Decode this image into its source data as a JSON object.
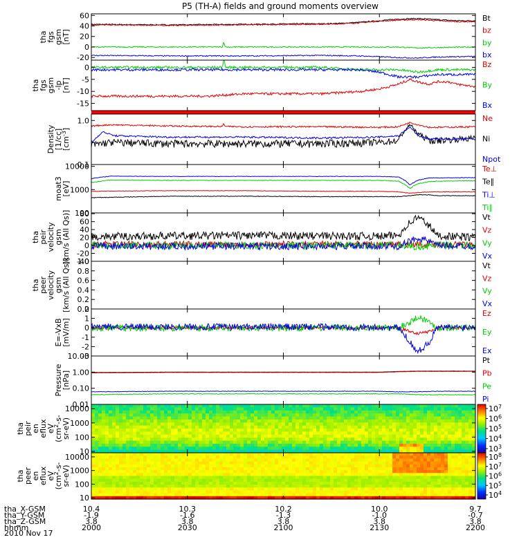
{
  "figure": {
    "title": "P5 (TH-A) fields and ground moments overview",
    "date_label": "2010 Nov 17"
  },
  "colors": {
    "black": "#000000",
    "red": "#dd0000",
    "green": "#00cc00",
    "blue": "#0000dd"
  },
  "chart_data": [
    {
      "type": "line",
      "id": "fgs_gsm",
      "ylabel": [
        "tha",
        "fgs",
        "gsm",
        "[nT]"
      ],
      "ylim": [
        -25,
        63
      ],
      "scale": "linear",
      "yticks": [
        -20,
        0,
        20,
        40,
        60
      ],
      "series": [
        {
          "name": "Bt",
          "color": "black",
          "x": [
            0,
            20,
            40,
            55,
            60,
            65,
            70,
            75,
            80,
            85,
            90,
            95,
            100
          ],
          "y": [
            43,
            42,
            43,
            44,
            44,
            45,
            47,
            50,
            53,
            54,
            52,
            50,
            50
          ],
          "noise": 1.0,
          "spikes": []
        },
        {
          "name": "bz",
          "color": "red",
          "x": [
            0,
            20,
            40,
            55,
            60,
            65,
            70,
            75,
            80,
            85,
            90,
            95,
            100
          ],
          "y": [
            42,
            41,
            42,
            43,
            43,
            44,
            46,
            49,
            51,
            52,
            50,
            48,
            48
          ],
          "noise": 1.0,
          "spikes": []
        },
        {
          "name": "by",
          "color": "green",
          "x": [
            0,
            20,
            40,
            60,
            70,
            80,
            85,
            90,
            100
          ],
          "y": [
            0,
            0,
            0,
            0,
            0,
            0,
            -2,
            -1,
            0
          ],
          "noise": 1.0,
          "spikes": [
            [
              34.5,
              10
            ]
          ]
        },
        {
          "name": "bx",
          "color": "blue",
          "x": [
            0,
            20,
            40,
            60,
            70,
            80,
            85,
            90,
            100
          ],
          "y": [
            -16,
            -17,
            -17,
            -16,
            -17,
            -20,
            -21,
            -19,
            -18
          ],
          "noise": 1.0,
          "spikes": []
        }
      ]
    },
    {
      "type": "line",
      "id": "fgs_gse_lp",
      "ylabel": [
        "tha",
        "fgs",
        "gsm",
        "-lp",
        "[nT]"
      ],
      "ylim": [
        -18,
        3
      ],
      "scale": "linear",
      "yticks": [
        -15,
        -10,
        -5,
        0
      ],
      "series": [
        {
          "name": "Bz",
          "color": "red",
          "x": [
            0,
            10,
            20,
            30,
            40,
            50,
            60,
            70,
            75,
            80,
            83,
            85,
            88,
            90,
            93,
            95,
            100
          ],
          "y": [
            -12,
            -12,
            -12,
            -12,
            -11,
            -11,
            -11,
            -10,
            -9,
            -7,
            -5,
            -6,
            -7,
            -6,
            -6,
            -7,
            -8
          ],
          "noise": 0.5,
          "spikes": []
        },
        {
          "name": "By",
          "color": "green",
          "x": [
            0,
            20,
            40,
            60,
            70,
            75,
            80,
            85,
            90,
            100
          ],
          "y": [
            0,
            0,
            0,
            0,
            -1,
            -1,
            -1,
            -2,
            -1,
            -1
          ],
          "noise": 0.5,
          "spikes": [
            [
              34.5,
              4
            ]
          ]
        },
        {
          "name": "Bx",
          "color": "blue",
          "x": [
            0,
            20,
            40,
            60,
            70,
            75,
            80,
            85,
            90,
            100
          ],
          "y": [
            -1,
            -1,
            -1,
            -1,
            -1,
            -2,
            -4,
            -4,
            -3,
            -3
          ],
          "noise": 0.5,
          "spikes": []
        }
      ]
    },
    {
      "type": "line",
      "id": "density",
      "ylabel": [
        "Density",
        "[1/cc]",
        "[cm^-3]"
      ],
      "ylim": [
        0.1,
        1.4
      ],
      "scale": "log",
      "yticks": [
        0.1,
        1.0
      ],
      "series": [
        {
          "name": "Ne",
          "color": "red",
          "x": [
            0,
            5,
            20,
            40,
            60,
            75,
            80,
            83,
            85,
            88,
            90,
            100
          ],
          "y": [
            0.75,
            0.8,
            0.75,
            0.72,
            0.72,
            0.7,
            0.72,
            0.9,
            0.8,
            0.7,
            0.7,
            0.72
          ],
          "noise": 0.03,
          "spikes": [
            [
              34.5,
              0.85
            ]
          ]
        },
        {
          "name": "Ni",
          "color": "black",
          "x": [
            0,
            5,
            20,
            40,
            60,
            75,
            80,
            83,
            85,
            88,
            90,
            100
          ],
          "y": [
            0.28,
            0.32,
            0.3,
            0.3,
            0.3,
            0.32,
            0.35,
            0.8,
            0.5,
            0.35,
            0.35,
            0.4
          ],
          "noise": 0.06,
          "spikes": []
        },
        {
          "name": "Npot",
          "color": "blue",
          "x": [
            0,
            3,
            6,
            20,
            40,
            60,
            75,
            80,
            83,
            85,
            88,
            90,
            100
          ],
          "y": [
            0.3,
            0.55,
            0.45,
            0.42,
            0.42,
            0.4,
            0.42,
            0.45,
            0.7,
            0.45,
            0.38,
            0.38,
            0.38
          ],
          "noise": 0.02,
          "spikes": []
        }
      ]
    },
    {
      "type": "line",
      "id": "temperature",
      "ylabel": [
        "moat3",
        "[eV]"
      ],
      "ylim": [
        100,
        12000
      ],
      "scale": "log",
      "yticks": [
        100,
        1000,
        10000
      ],
      "series": [
        {
          "name": "Te⊥",
          "color": "red",
          "x": [
            0,
            20,
            40,
            60,
            75,
            80,
            83,
            85,
            88,
            90,
            100
          ],
          "y": [
            850,
            900,
            900,
            850,
            850,
            800,
            700,
            750,
            800,
            800,
            800
          ],
          "noise": 20,
          "spikes": []
        },
        {
          "name": "Te∥",
          "color": "black",
          "x": [
            0,
            20,
            40,
            60,
            75,
            80,
            83,
            85,
            88,
            90,
            100
          ],
          "y": [
            450,
            520,
            520,
            500,
            500,
            500,
            550,
            600,
            600,
            550,
            550
          ],
          "noise": 15,
          "spikes": []
        },
        {
          "name": "Ti⊥",
          "color": "blue",
          "x": [
            0,
            5,
            20,
            40,
            60,
            75,
            80,
            83,
            85,
            88,
            90,
            100
          ],
          "y": [
            3000,
            3800,
            3700,
            3700,
            3700,
            3700,
            3500,
            1600,
            2500,
            3200,
            3200,
            3300
          ],
          "noise": 80,
          "spikes": []
        },
        {
          "name": "Ti∥",
          "color": "green",
          "x": [
            0,
            5,
            20,
            40,
            60,
            75,
            80,
            83,
            85,
            88,
            90,
            100
          ],
          "y": [
            2000,
            2600,
            2500,
            2500,
            2500,
            2500,
            2300,
            1100,
            1800,
            2200,
            2300,
            2400
          ],
          "noise": 60,
          "spikes": []
        }
      ]
    },
    {
      "type": "line",
      "id": "peir_velocity",
      "ylabel": [
        "tha",
        "peir",
        "velocity",
        "gsm",
        "[km/s (All Qs)]"
      ],
      "ylim": [
        -40,
        82
      ],
      "scale": "linear",
      "yticks": [
        -40,
        -20,
        0,
        20,
        40,
        60,
        80
      ],
      "series": [
        {
          "name": "Vt",
          "color": "black",
          "x": [
            0,
            20,
            40,
            60,
            75,
            80,
            82,
            85,
            88,
            90,
            100
          ],
          "y": [
            22,
            24,
            25,
            24,
            23,
            25,
            50,
            72,
            50,
            25,
            20
          ],
          "noise": 10,
          "spikes": []
        },
        {
          "name": "Vz",
          "color": "red",
          "x": [
            0,
            20,
            40,
            60,
            80,
            85,
            90,
            100
          ],
          "y": [
            3,
            3,
            3,
            3,
            3,
            3,
            3,
            3
          ],
          "noise": 8,
          "spikes": []
        },
        {
          "name": "Vy",
          "color": "green",
          "x": [
            0,
            20,
            40,
            60,
            80,
            85,
            90,
            100
          ],
          "y": [
            0,
            0,
            0,
            0,
            0,
            -3,
            0,
            0
          ],
          "noise": 9,
          "spikes": []
        },
        {
          "name": "Vx",
          "color": "blue",
          "x": [
            0,
            20,
            40,
            60,
            80,
            83,
            85,
            88,
            90,
            100
          ],
          "y": [
            -2,
            -2,
            -2,
            -2,
            -2,
            10,
            20,
            10,
            0,
            -2
          ],
          "noise": 9,
          "spikes": []
        }
      ]
    },
    {
      "type": "line",
      "id": "peer_velocity",
      "ylabel": [
        "tha",
        "peer",
        "velocity",
        "gsm",
        "[km/s (All Qs)]"
      ],
      "ylim": [
        0.0,
        1.0
      ],
      "scale": "linear",
      "yticks": [
        0.0,
        0.2,
        0.4,
        0.6,
        0.8,
        1.0
      ],
      "series": [
        {
          "name": "Vt",
          "color": "black",
          "x": [],
          "y": [],
          "noise": 0,
          "spikes": []
        },
        {
          "name": "Vz",
          "color": "red",
          "x": [],
          "y": [],
          "noise": 0,
          "spikes": []
        },
        {
          "name": "Vy",
          "color": "green",
          "x": [],
          "y": [],
          "noise": 0,
          "spikes": []
        },
        {
          "name": "Vx",
          "color": "blue",
          "x": [],
          "y": [],
          "noise": 0,
          "spikes": []
        }
      ]
    },
    {
      "type": "line",
      "id": "efield",
      "ylabel": [
        "E=-VxB",
        "[mV/m]"
      ],
      "ylim": [
        -3,
        2
      ],
      "scale": "linear",
      "yticks": [
        -3,
        -2,
        -1,
        0,
        1,
        2
      ],
      "series": [
        {
          "name": "Ez",
          "color": "red",
          "x": [
            0,
            20,
            40,
            60,
            80,
            83,
            85,
            88,
            90,
            100
          ],
          "y": [
            0,
            0,
            0,
            0,
            0,
            -0.4,
            -0.6,
            -0.4,
            0,
            0
          ],
          "noise": 0.15,
          "spikes": []
        },
        {
          "name": "Ey",
          "color": "green",
          "x": [
            0,
            20,
            40,
            60,
            80,
            83,
            85,
            88,
            90,
            100
          ],
          "y": [
            0,
            0,
            0,
            0,
            0,
            0.6,
            1.2,
            0.6,
            0,
            0
          ],
          "noise": 0.35,
          "spikes": []
        },
        {
          "name": "Ex",
          "color": "blue",
          "x": [
            0,
            20,
            40,
            60,
            80,
            83,
            85,
            88,
            90,
            100
          ],
          "y": [
            0.1,
            0.1,
            0.1,
            0.1,
            0,
            -1.5,
            -2.6,
            -1.5,
            0,
            0.1
          ],
          "noise": 0.35,
          "spikes": []
        }
      ]
    },
    {
      "type": "line",
      "id": "pressure",
      "ylabel": [
        "Pressure",
        "[nPa]"
      ],
      "ylim": [
        0.01,
        10
      ],
      "scale": "log",
      "yticks": [
        0.01,
        0.1,
        1.0,
        10.0
      ],
      "series": [
        {
          "name": "Pt",
          "color": "black",
          "x": [
            0,
            20,
            40,
            60,
            75,
            80,
            85,
            90,
            100
          ],
          "y": [
            0.95,
            1.0,
            1.0,
            1.0,
            1.0,
            1.1,
            1.15,
            1.15,
            1.15
          ],
          "noise": 0.01,
          "spikes": []
        },
        {
          "name": "Pb",
          "color": "red",
          "x": [
            0,
            20,
            40,
            60,
            75,
            80,
            85,
            90,
            100
          ],
          "y": [
            0.9,
            0.95,
            0.95,
            0.95,
            0.95,
            1.05,
            1.1,
            1.1,
            1.1
          ],
          "noise": 0.01,
          "spikes": []
        },
        {
          "name": "Pe",
          "color": "green",
          "x": [
            0,
            20,
            40,
            60,
            75,
            80,
            85,
            90,
            100
          ],
          "y": [
            0.04,
            0.045,
            0.045,
            0.045,
            0.045,
            0.045,
            0.04,
            0.04,
            0.04
          ],
          "noise": 0.002,
          "spikes": []
        },
        {
          "name": "Pi",
          "color": "blue",
          "x": [
            0,
            20,
            40,
            60,
            75,
            80,
            85,
            90,
            100
          ],
          "y": [
            0.06,
            0.065,
            0.065,
            0.065,
            0.065,
            0.06,
            0.06,
            0.065,
            0.065
          ],
          "noise": 0.002,
          "spikes": []
        }
      ]
    },
    {
      "type": "heatmap",
      "id": "peir_en_eflux",
      "ylabel": [
        "tha",
        "peir",
        "en",
        "eflux",
        "eV",
        "(cm^2-s-",
        "sr-eV)"
      ],
      "ylim": [
        8,
        20000
      ],
      "scale": "log",
      "yticks": [
        10,
        100,
        1000,
        10000
      ],
      "colorbar": {
        "ticks": [
          "10^3",
          "10^4",
          "10^5",
          "10^6",
          "10^7"
        ]
      }
    },
    {
      "type": "heatmap",
      "id": "peer_en_eflux",
      "ylabel": [
        "tha",
        "peer",
        "en",
        "eflux",
        "eV",
        "(cm^2-s-",
        "sr-eV)"
      ],
      "ylim": [
        8,
        20000
      ],
      "scale": "log",
      "yticks": [
        10,
        100,
        1000,
        10000
      ],
      "colorbar": {
        "ticks": [
          "10^4",
          "10^5",
          "10^6",
          "10^7",
          "10^8"
        ]
      }
    }
  ],
  "xaxis": {
    "ticks": [
      {
        "x": 0,
        "X": "10.4",
        "Y": "-1.9",
        "Z": "3.8",
        "hhmm": "2000"
      },
      {
        "x": 25,
        "X": "10.3",
        "Y": "-1.6",
        "Z": "3.8",
        "hhmm": "2030"
      },
      {
        "x": 50,
        "X": "10.2",
        "Y": "-1.3",
        "Z": "3.8",
        "hhmm": "2100"
      },
      {
        "x": 75,
        "X": "10.0",
        "Y": "-1.0",
        "Z": "3.8",
        "hhmm": "2130"
      },
      {
        "x": 100,
        "X": "9.7",
        "Y": "-0.7",
        "Z": "3.8",
        "hhmm": "2200"
      }
    ],
    "row_labels": [
      "tha_X-GSM",
      "tha_Y-GSM",
      "tha_Z-GSM",
      "hhmm"
    ]
  }
}
